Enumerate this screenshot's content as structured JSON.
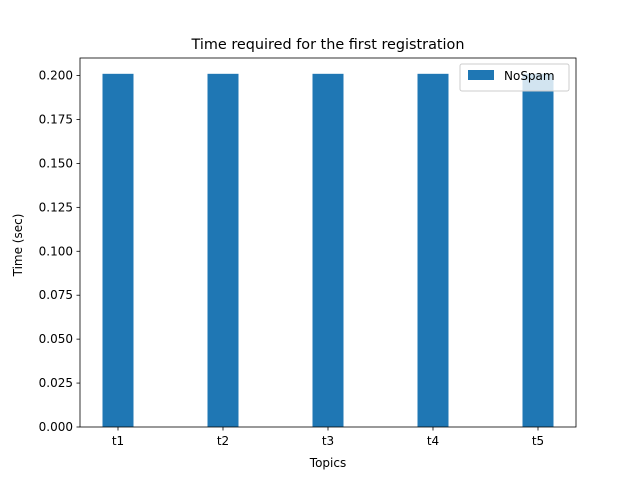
{
  "chart_data": {
    "type": "bar",
    "title": "Time required for the first registration",
    "xlabel": "Topics",
    "ylabel": "Time (sec)",
    "categories": [
      "t1",
      "t2",
      "t3",
      "t4",
      "t5"
    ],
    "series": [
      {
        "name": "NoSpam",
        "values": [
          0.201,
          0.201,
          0.201,
          0.201,
          0.201
        ],
        "color": "#1f77b4"
      }
    ],
    "ylim": [
      0,
      0.21
    ],
    "yticks": [
      "0.000",
      "0.025",
      "0.050",
      "0.075",
      "0.100",
      "0.125",
      "0.150",
      "0.175",
      "0.200"
    ],
    "grid": false,
    "legend_position": "top-right"
  }
}
